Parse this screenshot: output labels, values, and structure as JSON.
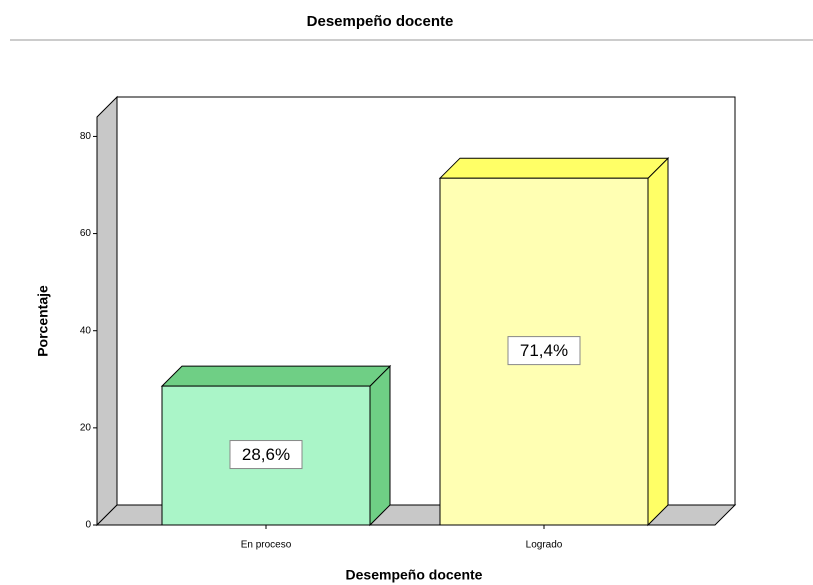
{
  "chart_data": {
    "type": "bar3d",
    "title": "Desempeño docente",
    "xlabel": "Desempeño docente",
    "ylabel": "Porcentaje",
    "categories": [
      "En proceso",
      "Logrado"
    ],
    "values": [
      28.6,
      71.4
    ],
    "value_labels": [
      "28,6%",
      "71,4%"
    ],
    "colors": [
      "#aaf5c8",
      "#ffffb3"
    ],
    "side_colors": [
      "#6fcf85",
      "#ffff66"
    ],
    "ylim": [
      0,
      84
    ],
    "yticks": [
      0,
      20,
      40,
      60,
      80
    ]
  }
}
